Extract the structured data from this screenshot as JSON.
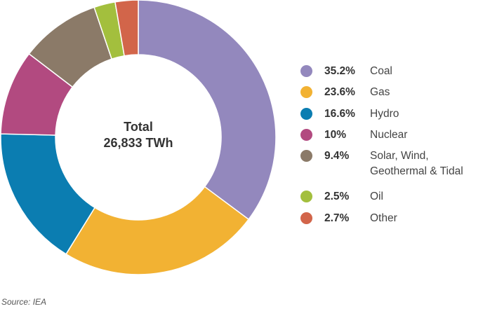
{
  "chart_data": {
    "type": "pie",
    "variant": "donut",
    "center_label": [
      "Total",
      "26,833 TWh"
    ],
    "slices": [
      {
        "label": "Coal",
        "value": 35.2,
        "display": "35.2%",
        "color": "#9388bd"
      },
      {
        "label": "Gas",
        "value": 23.6,
        "display": "23.6%",
        "color": "#f2b233"
      },
      {
        "label": "Hydro",
        "value": 16.6,
        "display": "16.6%",
        "color": "#0b7db1"
      },
      {
        "label": "Nuclear",
        "value": 10,
        "display": "10%",
        "color": "#b24a80"
      },
      {
        "label": "Solar, Wind,\nGeothermal & Tidal",
        "value": 9.4,
        "display": "9.4%",
        "color": "#8b7a68"
      },
      {
        "label": "Oil",
        "value": 2.5,
        "display": "2.5%",
        "color": "#a3bf3d"
      },
      {
        "label": "Other",
        "value": 2.7,
        "display": "2.7%",
        "color": "#d2654a"
      }
    ],
    "legend_position": "right",
    "source": "Source: IEA"
  }
}
